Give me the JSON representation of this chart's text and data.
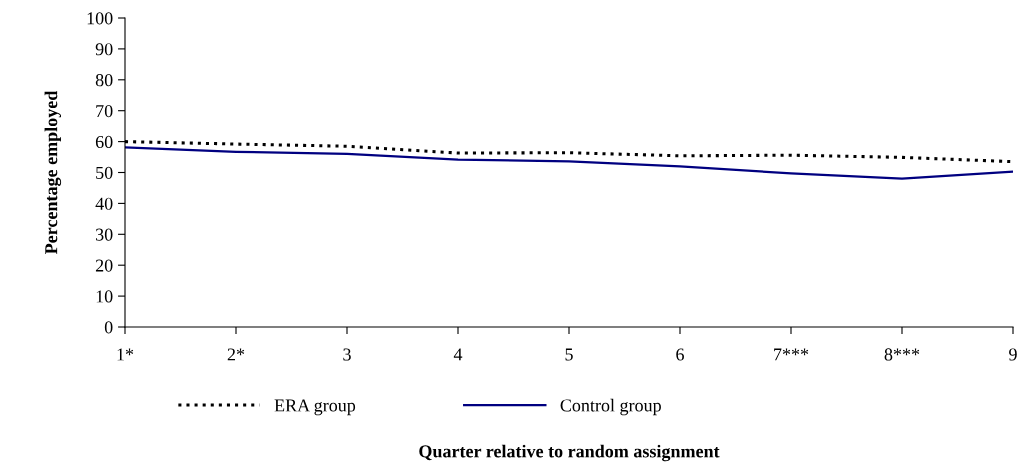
{
  "chart_data": {
    "type": "line",
    "xlabel": "Quarter relative to random assignment",
    "ylabel": "Percentage employed",
    "categories": [
      "1*",
      "2*",
      "3",
      "4",
      "5",
      "6",
      "7***",
      "8***",
      "9"
    ],
    "series": [
      {
        "name": "ERA group",
        "color": "#000000",
        "line_style": "dotted",
        "values": [
          60,
          59.2,
          58.5,
          56.3,
          56.4,
          55.4,
          55.6,
          54.9,
          53.5
        ]
      },
      {
        "name": "Control group",
        "color": "#000080",
        "line_style": "solid",
        "values": [
          58.1,
          56.7,
          56,
          54.2,
          53.6,
          52,
          49.7,
          48,
          50.3
        ]
      }
    ],
    "ylim": [
      0,
      100
    ],
    "yticks": [
      0,
      10,
      20,
      30,
      40,
      50,
      60,
      70,
      80,
      90,
      100
    ],
    "grid": false,
    "legend": "bottom",
    "marker": "none"
  }
}
